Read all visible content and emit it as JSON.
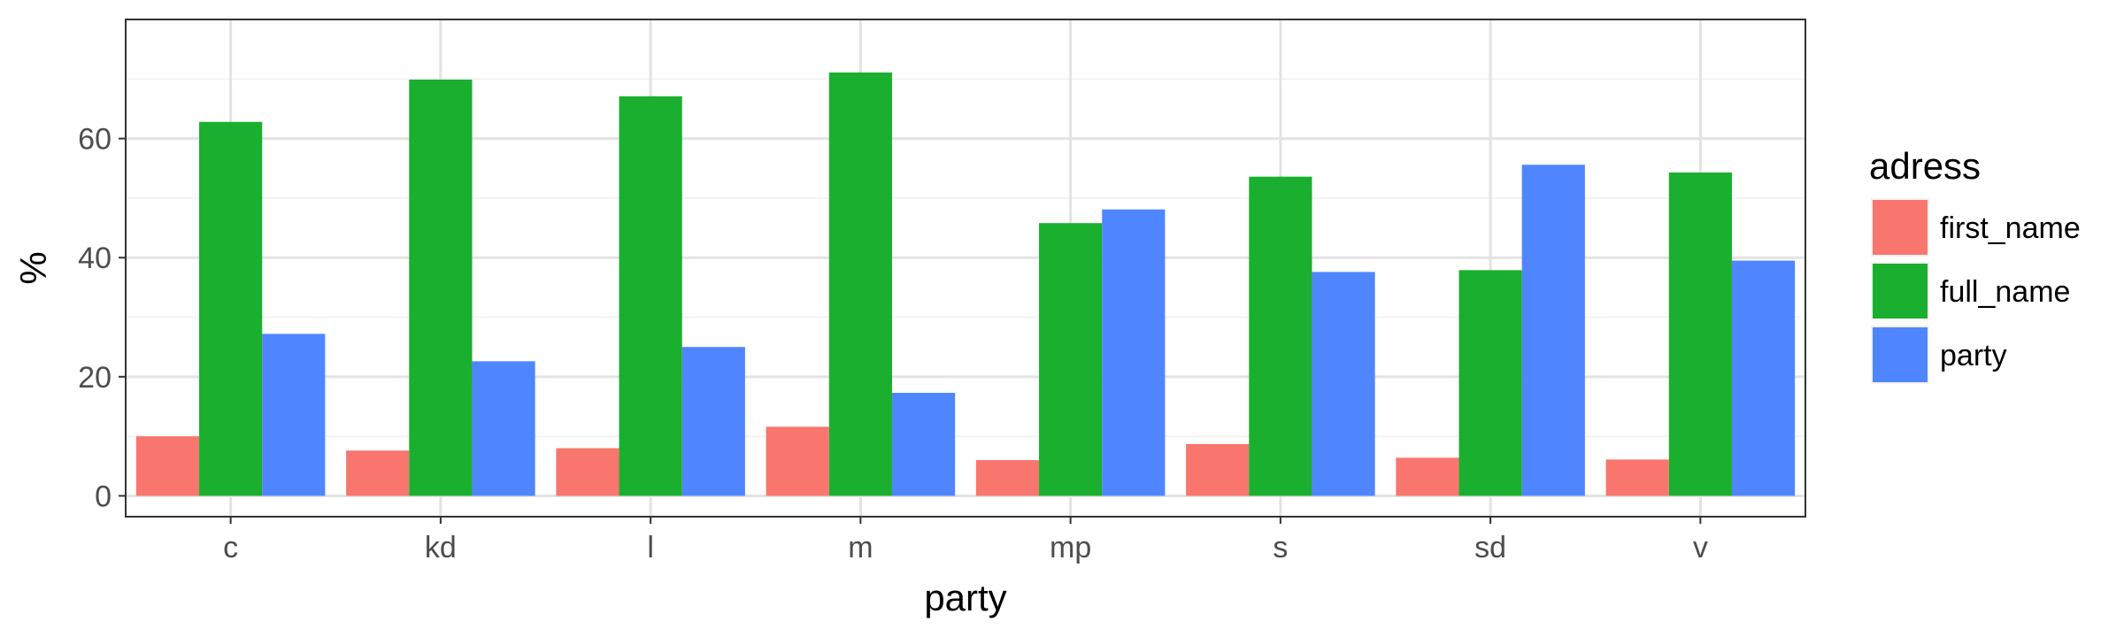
{
  "chart_data": {
    "type": "bar",
    "xlabel": "party",
    "ylabel": "%",
    "categories": [
      "c",
      "kd",
      "l",
      "m",
      "mp",
      "s",
      "sd",
      "v"
    ],
    "ylim": [
      -3.5,
      80
    ],
    "yticks": [
      0,
      20,
      40,
      60
    ],
    "grid": true,
    "legend": {
      "title": "adress",
      "position": "right"
    },
    "series": [
      {
        "name": "first_name",
        "color": "#F8766D",
        "values": [
          10.0,
          7.6,
          8.0,
          11.6,
          6.0,
          8.7,
          6.4,
          6.1
        ]
      },
      {
        "name": "full_name",
        "color": "#1AAF2E",
        "values": [
          62.8,
          69.9,
          67.1,
          71.1,
          45.8,
          53.6,
          37.9,
          54.3
        ]
      },
      {
        "name": "party",
        "color": "#4F86FF",
        "values": [
          27.2,
          22.6,
          25.0,
          17.3,
          48.1,
          37.6,
          55.6,
          39.5
        ]
      }
    ]
  }
}
